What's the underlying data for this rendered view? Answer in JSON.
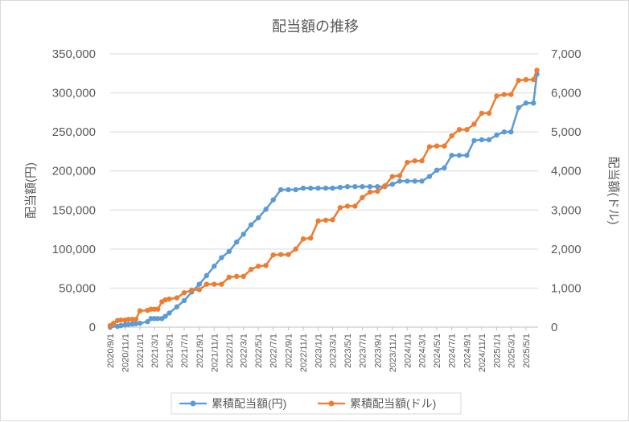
{
  "chart_data": {
    "type": "line",
    "title": "配当額の推移",
    "ylabel_left": "配当額(円)",
    "ylabel_right": "配当額(ドル)",
    "ylim_left": [
      0,
      350000
    ],
    "ylim_right": [
      0,
      7000
    ],
    "yticks_left": [
      "0",
      "50,000",
      "100,000",
      "150,000",
      "200,000",
      "250,000",
      "300,000",
      "350,000"
    ],
    "yticks_right": [
      "0",
      "1,000",
      "2,000",
      "3,000",
      "4,000",
      "5,000",
      "6,000",
      "7,000"
    ],
    "grid": true,
    "legend_position": "bottom",
    "x_tick_labels": [
      "2020/9/1",
      "2020/11/1",
      "2021/1/1",
      "2021/3/1",
      "2021/5/1",
      "2021/7/1",
      "2021/9/1",
      "2021/11/1",
      "2022/1/1",
      "2022/3/1",
      "2022/5/1",
      "2022/7/1",
      "2022/9/1",
      "2022/11/1",
      "2023/1/1",
      "2023/3/1",
      "2023/5/1",
      "2023/7/1",
      "2023/9/1",
      "2023/11/1",
      "2024/1/1",
      "2024/3/1",
      "2024/5/1",
      "2024/7/1",
      "2024/9/1",
      "2024/11/1",
      "2025/1/1",
      "2025/3/1",
      "2025/5/1"
    ],
    "series": [
      {
        "name": "累積配当額(円)",
        "axis": "left",
        "color": "#5b9bd5",
        "points": [
          [
            "2020-09-01",
            0
          ],
          [
            "2020-10-01",
            1000
          ],
          [
            "2020-10-15",
            2000
          ],
          [
            "2020-11-01",
            3000
          ],
          [
            "2020-11-15",
            3500
          ],
          [
            "2020-12-01",
            4000
          ],
          [
            "2020-12-15",
            4500
          ],
          [
            "2021-01-01",
            5000
          ],
          [
            "2021-02-01",
            7000
          ],
          [
            "2021-02-15",
            11000
          ],
          [
            "2021-03-01",
            11000
          ],
          [
            "2021-03-15",
            11000
          ],
          [
            "2021-04-01",
            11000
          ],
          [
            "2021-04-15",
            14000
          ],
          [
            "2021-05-01",
            18000
          ],
          [
            "2021-06-01",
            26000
          ],
          [
            "2021-07-01",
            34000
          ],
          [
            "2021-08-01",
            45000
          ],
          [
            "2021-09-01",
            55000
          ],
          [
            "2021-10-01",
            66000
          ],
          [
            "2021-11-01",
            78000
          ],
          [
            "2021-12-01",
            89000
          ],
          [
            "2022-01-01",
            97000
          ],
          [
            "2022-02-01",
            109000
          ],
          [
            "2022-03-01",
            119000
          ],
          [
            "2022-04-01",
            131000
          ],
          [
            "2022-05-01",
            140000
          ],
          [
            "2022-06-01",
            151000
          ],
          [
            "2022-07-01",
            163000
          ],
          [
            "2022-08-01",
            176000
          ],
          [
            "2022-09-01",
            176000
          ],
          [
            "2022-10-01",
            176000
          ],
          [
            "2022-11-01",
            178000
          ],
          [
            "2022-12-01",
            178000
          ],
          [
            "2023-01-01",
            178000
          ],
          [
            "2023-02-01",
            178000
          ],
          [
            "2023-03-01",
            178000
          ],
          [
            "2023-04-01",
            179000
          ],
          [
            "2023-05-01",
            180000
          ],
          [
            "2023-06-01",
            180000
          ],
          [
            "2023-07-01",
            180000
          ],
          [
            "2023-08-01",
            180000
          ],
          [
            "2023-09-01",
            180000
          ],
          [
            "2023-10-01",
            180000
          ],
          [
            "2023-11-01",
            183000
          ],
          [
            "2023-12-01",
            187000
          ],
          [
            "2024-01-01",
            187000
          ],
          [
            "2024-02-01",
            187000
          ],
          [
            "2024-03-01",
            187000
          ],
          [
            "2024-04-01",
            193000
          ],
          [
            "2024-05-01",
            201000
          ],
          [
            "2024-06-01",
            204000
          ],
          [
            "2024-07-01",
            220000
          ],
          [
            "2024-08-01",
            220000
          ],
          [
            "2024-09-01",
            220000
          ],
          [
            "2024-10-01",
            239000
          ],
          [
            "2024-11-01",
            240000
          ],
          [
            "2024-12-01",
            240000
          ],
          [
            "2025-01-01",
            246000
          ],
          [
            "2025-02-01",
            250000
          ],
          [
            "2025-03-01",
            250000
          ],
          [
            "2025-04-01",
            281000
          ],
          [
            "2025-05-01",
            287000
          ],
          [
            "2025-06-01",
            287000
          ],
          [
            "2025-06-15",
            324000
          ]
        ]
      },
      {
        "name": "累積配当額(ドル)",
        "axis": "right",
        "color": "#ed7d31",
        "points": [
          [
            "2020-09-01",
            40
          ],
          [
            "2020-09-15",
            100
          ],
          [
            "2020-10-01",
            170
          ],
          [
            "2020-10-15",
            180
          ],
          [
            "2020-11-01",
            180
          ],
          [
            "2020-11-15",
            200
          ],
          [
            "2020-12-01",
            200
          ],
          [
            "2020-12-15",
            200
          ],
          [
            "2021-01-01",
            420
          ],
          [
            "2021-02-01",
            430
          ],
          [
            "2021-02-15",
            460
          ],
          [
            "2021-03-01",
            460
          ],
          [
            "2021-03-15",
            460
          ],
          [
            "2021-04-01",
            650
          ],
          [
            "2021-04-15",
            700
          ],
          [
            "2021-05-01",
            720
          ],
          [
            "2021-06-01",
            750
          ],
          [
            "2021-07-01",
            880
          ],
          [
            "2021-08-01",
            950
          ],
          [
            "2021-09-01",
            960
          ],
          [
            "2021-10-01",
            1100
          ],
          [
            "2021-11-01",
            1100
          ],
          [
            "2021-12-01",
            1100
          ],
          [
            "2022-01-01",
            1280
          ],
          [
            "2022-02-01",
            1300
          ],
          [
            "2022-03-01",
            1300
          ],
          [
            "2022-04-01",
            1480
          ],
          [
            "2022-05-01",
            1560
          ],
          [
            "2022-06-01",
            1580
          ],
          [
            "2022-07-01",
            1850
          ],
          [
            "2022-08-01",
            1860
          ],
          [
            "2022-09-01",
            1860
          ],
          [
            "2022-10-01",
            2000
          ],
          [
            "2022-11-01",
            2260
          ],
          [
            "2022-12-01",
            2280
          ],
          [
            "2023-01-01",
            2720
          ],
          [
            "2023-02-01",
            2740
          ],
          [
            "2023-03-01",
            2750
          ],
          [
            "2023-04-01",
            3060
          ],
          [
            "2023-05-01",
            3100
          ],
          [
            "2023-06-01",
            3100
          ],
          [
            "2023-07-01",
            3320
          ],
          [
            "2023-08-01",
            3460
          ],
          [
            "2023-09-01",
            3480
          ],
          [
            "2023-10-01",
            3620
          ],
          [
            "2023-11-01",
            3860
          ],
          [
            "2023-12-01",
            3880
          ],
          [
            "2024-01-01",
            4220
          ],
          [
            "2024-02-01",
            4260
          ],
          [
            "2024-03-01",
            4260
          ],
          [
            "2024-04-01",
            4620
          ],
          [
            "2024-05-01",
            4640
          ],
          [
            "2024-06-01",
            4640
          ],
          [
            "2024-07-01",
            4900
          ],
          [
            "2024-08-01",
            5060
          ],
          [
            "2024-09-01",
            5060
          ],
          [
            "2024-10-01",
            5200
          ],
          [
            "2024-11-01",
            5480
          ],
          [
            "2024-12-01",
            5480
          ],
          [
            "2025-01-01",
            5920
          ],
          [
            "2025-02-01",
            5960
          ],
          [
            "2025-03-01",
            5960
          ],
          [
            "2025-04-01",
            6320
          ],
          [
            "2025-05-01",
            6340
          ],
          [
            "2025-06-01",
            6340
          ],
          [
            "2025-06-15",
            6580
          ]
        ]
      }
    ]
  }
}
